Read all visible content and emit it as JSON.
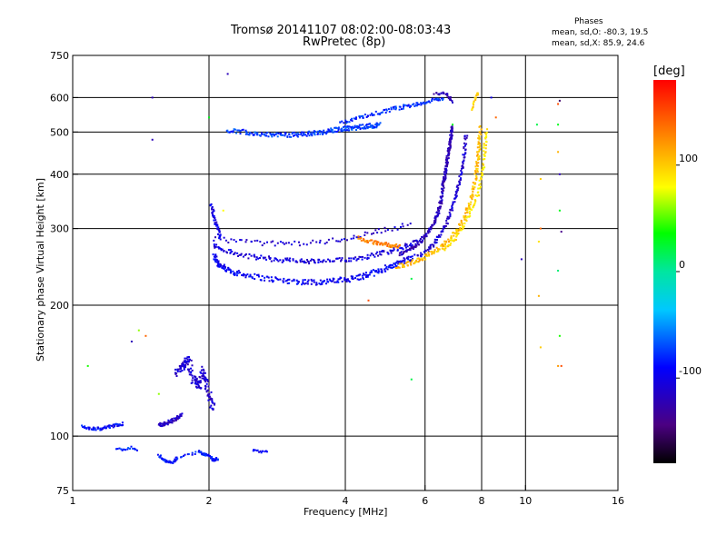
{
  "chart_data": {
    "type": "scatter",
    "title": "Tromsø 20141107 08:02:00-08:03:43",
    "subtitle": "RwPretec (8p)",
    "xlabel": "Frequency [MHz]",
    "ylabel": "Stationary phase Virtual Height [km]",
    "x_scale": "log",
    "y_scale": "log",
    "xlim": [
      1,
      16
    ],
    "ylim": [
      75,
      750
    ],
    "x_ticks": [
      1,
      2,
      4,
      6,
      8,
      10,
      16
    ],
    "y_ticks": [
      75,
      100,
      200,
      300,
      400,
      500,
      600,
      750
    ],
    "x_grid": [
      2,
      4,
      6,
      8,
      10
    ],
    "y_grid": [
      100,
      200,
      300,
      400,
      500,
      600
    ],
    "grid": true,
    "phase_stats": {
      "heading": "Phases",
      "o_label": "mean, sd,O:",
      "o_values": "-80.3, 19.5",
      "x_label": "mean, sd,X:",
      "x_values": "85.9, 24.6"
    },
    "colorbar": {
      "label": "[deg]",
      "range": [
        -180,
        180
      ],
      "ticks": [
        100,
        0,
        -100
      ],
      "placement": "right"
    },
    "traces": [
      {
        "f": [
          2.05,
          2.08,
          2.12,
          2.18,
          2.25,
          2.35,
          2.5,
          2.7,
          2.9,
          3.1,
          3.3,
          3.5,
          3.7,
          3.9,
          4.1,
          4.3,
          4.5,
          4.7,
          4.9,
          5.1,
          5.3,
          5.5,
          5.7
        ],
        "h": [
          260,
          252,
          246,
          242,
          239,
          236,
          233,
          230,
          228,
          227,
          226,
          226,
          227,
          228,
          230,
          232,
          235,
          239,
          243,
          247,
          251,
          255,
          259
        ],
        "phase": -95,
        "jitter": 0.03,
        "copies": 2
      },
      {
        "f": [
          2.05,
          2.15,
          2.3,
          2.5,
          2.7,
          2.9,
          3.1,
          3.3,
          3.5,
          3.8,
          4.1,
          4.4,
          4.7,
          5.0,
          5.3,
          5.6,
          5.9
        ],
        "h": [
          275,
          268,
          262,
          258,
          256,
          254,
          253,
          252,
          252,
          253,
          255,
          258,
          262,
          266,
          271,
          276,
          282
        ],
        "phase": -105,
        "jitter": 0.025,
        "copies": 2
      },
      {
        "f": [
          2.05,
          2.2,
          2.4,
          2.6,
          2.8,
          3.0,
          3.3,
          3.6,
          3.9,
          4.2,
          4.5,
          4.8,
          5.2,
          5.6
        ],
        "h": [
          285,
          282,
          280,
          278,
          277,
          277,
          278,
          280,
          283,
          287,
          292,
          297,
          302,
          308
        ],
        "phase": -110,
        "jitter": 0.025,
        "copies": 1
      },
      {
        "f": [
          2.02,
          2.05,
          2.08,
          2.1,
          2.12
        ],
        "h": [
          340,
          320,
          305,
          295,
          285
        ],
        "phase": -100,
        "jitter": 0.02,
        "copies": 2
      },
      {
        "f": [
          4.3,
          4.5,
          4.7,
          4.9,
          5.1,
          5.3
        ],
        "h": [
          285,
          280,
          278,
          276,
          274,
          272
        ],
        "phase": 130,
        "jitter": 0.02,
        "copies": 2
      },
      {
        "f": [
          5.3,
          5.6,
          5.9,
          6.1,
          6.3,
          6.4,
          6.5,
          6.55,
          6.6,
          6.65,
          6.7,
          6.75,
          6.8,
          6.85,
          6.9
        ],
        "h": [
          262,
          270,
          282,
          295,
          310,
          325,
          345,
          365,
          385,
          405,
          425,
          445,
          465,
          490,
          520
        ],
        "phase": -120,
        "jitter": 0.02,
        "copies": 3
      },
      {
        "f": [
          5.8,
          6.1,
          6.3,
          6.5,
          6.7,
          6.85,
          7.0,
          7.1,
          7.2,
          7.3,
          7.35,
          7.4
        ],
        "h": [
          258,
          268,
          278,
          292,
          310,
          330,
          352,
          375,
          400,
          430,
          460,
          500
        ],
        "phase": -110,
        "jitter": 0.02,
        "copies": 2
      },
      {
        "f": [
          5.2,
          5.6,
          6.0,
          6.4,
          6.8,
          7.1,
          7.4,
          7.6,
          7.75,
          7.85,
          7.9,
          7.95
        ],
        "h": [
          245,
          250,
          258,
          268,
          282,
          300,
          325,
          355,
          390,
          430,
          470,
          520
        ],
        "phase": 105,
        "jitter": 0.025,
        "copies": 3
      },
      {
        "f": [
          6.6,
          7.0,
          7.3,
          7.6,
          7.85,
          8.0,
          8.1,
          8.15,
          8.2
        ],
        "h": [
          270,
          285,
          305,
          330,
          360,
          395,
          430,
          470,
          510
        ],
        "phase": 90,
        "jitter": 0.02,
        "copies": 2
      },
      {
        "f": [
          7.6,
          7.7,
          7.8,
          7.85
        ],
        "h": [
          560,
          585,
          605,
          620
        ],
        "phase": 95,
        "jitter": 0.015,
        "copies": 1
      },
      {
        "f": [
          2.2,
          2.4,
          2.6,
          2.8,
          3.0,
          3.2,
          3.4,
          3.6,
          3.8,
          4.0,
          4.2,
          4.4,
          4.6,
          4.8
        ],
        "h": [
          505,
          500,
          495,
          492,
          492,
          494,
          497,
          500,
          505,
          510,
          512,
          515,
          517,
          520
        ],
        "phase": -75,
        "jitter": 0.025,
        "copies": 3
      },
      {
        "f": [
          3.9,
          4.2,
          4.5,
          4.8,
          5.1,
          5.4,
          5.7,
          6.0,
          6.3,
          6.6
        ],
        "h": [
          525,
          535,
          545,
          555,
          565,
          572,
          578,
          585,
          592,
          600
        ],
        "phase": -80,
        "jitter": 0.02,
        "copies": 2
      },
      {
        "f": [
          6.3,
          6.5,
          6.7,
          6.8,
          6.9
        ],
        "h": [
          610,
          615,
          612,
          600,
          580
        ],
        "phase": -120,
        "jitter": 0.015,
        "copies": 1
      },
      {
        "f": [
          1.7,
          1.75,
          1.8,
          1.85,
          1.9,
          1.95,
          2.0,
          2.05
        ],
        "h": [
          140,
          145,
          150,
          135,
          130,
          142,
          125,
          115
        ],
        "phase": -110,
        "jitter": 0.04,
        "copies": 4
      },
      {
        "f": [
          1.55,
          1.6,
          1.65,
          1.7,
          1.75
        ],
        "h": [
          106,
          107,
          108,
          110,
          112
        ],
        "phase": -115,
        "jitter": 0.02,
        "copies": 3
      },
      {
        "f": [
          1.05,
          1.1,
          1.15,
          1.2,
          1.25,
          1.3
        ],
        "h": [
          105,
          104,
          104,
          105,
          106,
          107
        ],
        "phase": -90,
        "jitter": 0.015,
        "copies": 2
      },
      {
        "f": [
          1.55,
          1.6,
          1.65,
          1.7,
          1.9,
          1.95,
          2.0,
          2.05,
          2.1
        ],
        "h": [
          90,
          88,
          87,
          89,
          92,
          91,
          90,
          88,
          89
        ],
        "phase": -85,
        "jitter": 0.015,
        "copies": 2
      },
      {
        "f": [
          1.25,
          1.3,
          1.35,
          1.4
        ],
        "h": [
          94,
          93,
          94,
          92
        ],
        "phase": -80,
        "jitter": 0.015,
        "copies": 1
      },
      {
        "f": [
          2.5,
          2.6,
          2.7
        ],
        "h": [
          93,
          92,
          92
        ],
        "phase": -95,
        "jitter": 0.01,
        "copies": 1
      }
    ],
    "scatter_points": [
      {
        "f": 1.5,
        "h": 600,
        "phase": -120
      },
      {
        "f": 1.5,
        "h": 480,
        "phase": -120
      },
      {
        "f": 2.2,
        "h": 680,
        "phase": -120
      },
      {
        "f": 2.0,
        "h": 540,
        "phase": 30
      },
      {
        "f": 2.15,
        "h": 330,
        "phase": 80
      },
      {
        "f": 1.08,
        "h": 145,
        "phase": 40
      },
      {
        "f": 1.4,
        "h": 175,
        "phase": 60
      },
      {
        "f": 1.45,
        "h": 170,
        "phase": 140
      },
      {
        "f": 1.35,
        "h": 165,
        "phase": -120
      },
      {
        "f": 1.55,
        "h": 125,
        "phase": 60
      },
      {
        "f": 4.5,
        "h": 205,
        "phase": 150
      },
      {
        "f": 5.6,
        "h": 230,
        "phase": 20
      },
      {
        "f": 5.6,
        "h": 135,
        "phase": 20
      },
      {
        "f": 6.9,
        "h": 520,
        "phase": 30
      },
      {
        "f": 8.6,
        "h": 540,
        "phase": 140
      },
      {
        "f": 8.4,
        "h": 600,
        "phase": -100
      },
      {
        "f": 9.8,
        "h": 255,
        "phase": -120
      },
      {
        "f": 10.6,
        "h": 520,
        "phase": 20
      },
      {
        "f": 10.8,
        "h": 390,
        "phase": 100
      },
      {
        "f": 10.8,
        "h": 300,
        "phase": 140
      },
      {
        "f": 10.7,
        "h": 280,
        "phase": 90
      },
      {
        "f": 10.7,
        "h": 210,
        "phase": 110
      },
      {
        "f": 10.8,
        "h": 160,
        "phase": 100
      },
      {
        "f": 11.8,
        "h": 580,
        "phase": 150
      },
      {
        "f": 11.9,
        "h": 590,
        "phase": -150
      },
      {
        "f": 11.8,
        "h": 520,
        "phase": 30
      },
      {
        "f": 11.8,
        "h": 450,
        "phase": 110
      },
      {
        "f": 11.9,
        "h": 400,
        "phase": -120
      },
      {
        "f": 11.9,
        "h": 330,
        "phase": 30
      },
      {
        "f": 12.0,
        "h": 295,
        "phase": -140
      },
      {
        "f": 11.8,
        "h": 240,
        "phase": 10
      },
      {
        "f": 11.9,
        "h": 170,
        "phase": 40
      },
      {
        "f": 11.8,
        "h": 145,
        "phase": 120
      },
      {
        "f": 12.0,
        "h": 145,
        "phase": 150
      }
    ]
  }
}
